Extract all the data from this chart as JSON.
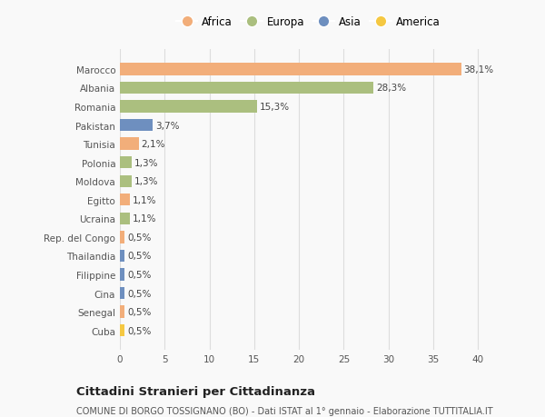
{
  "categories": [
    "Marocco",
    "Albania",
    "Romania",
    "Pakistan",
    "Tunisia",
    "Polonia",
    "Moldova",
    "Egitto",
    "Ucraina",
    "Rep. del Congo",
    "Thailandia",
    "Filippine",
    "Cina",
    "Senegal",
    "Cuba"
  ],
  "values": [
    38.1,
    28.3,
    15.3,
    3.7,
    2.1,
    1.3,
    1.3,
    1.1,
    1.1,
    0.5,
    0.5,
    0.5,
    0.5,
    0.5,
    0.5
  ],
  "labels": [
    "38,1%",
    "28,3%",
    "15,3%",
    "3,7%",
    "2,1%",
    "1,3%",
    "1,3%",
    "1,1%",
    "1,1%",
    "0,5%",
    "0,5%",
    "0,5%",
    "0,5%",
    "0,5%",
    "0,5%"
  ],
  "colors": [
    "#F2AE7A",
    "#ABBF7F",
    "#ABBF7F",
    "#6E8FBF",
    "#F2AE7A",
    "#ABBF7F",
    "#ABBF7F",
    "#F2AE7A",
    "#ABBF7F",
    "#F2AE7A",
    "#6E8FBF",
    "#6E8FBF",
    "#6E8FBF",
    "#F2AE7A",
    "#F5C842"
  ],
  "legend": [
    {
      "label": "Africa",
      "color": "#F2AE7A"
    },
    {
      "label": "Europa",
      "color": "#ABBF7F"
    },
    {
      "label": "Asia",
      "color": "#6E8FBF"
    },
    {
      "label": "America",
      "color": "#F5C842"
    }
  ],
  "xlim": [
    0,
    42
  ],
  "xticks": [
    0,
    5,
    10,
    15,
    20,
    25,
    30,
    35,
    40
  ],
  "title": "Cittadini Stranieri per Cittadinanza",
  "subtitle": "COMUNE DI BORGO TOSSIGNANO (BO) - Dati ISTAT al 1° gennaio - Elaborazione TUTTITALIA.IT",
  "background_color": "#f9f9f9",
  "grid_color": "#dddddd",
  "bar_height": 0.65
}
